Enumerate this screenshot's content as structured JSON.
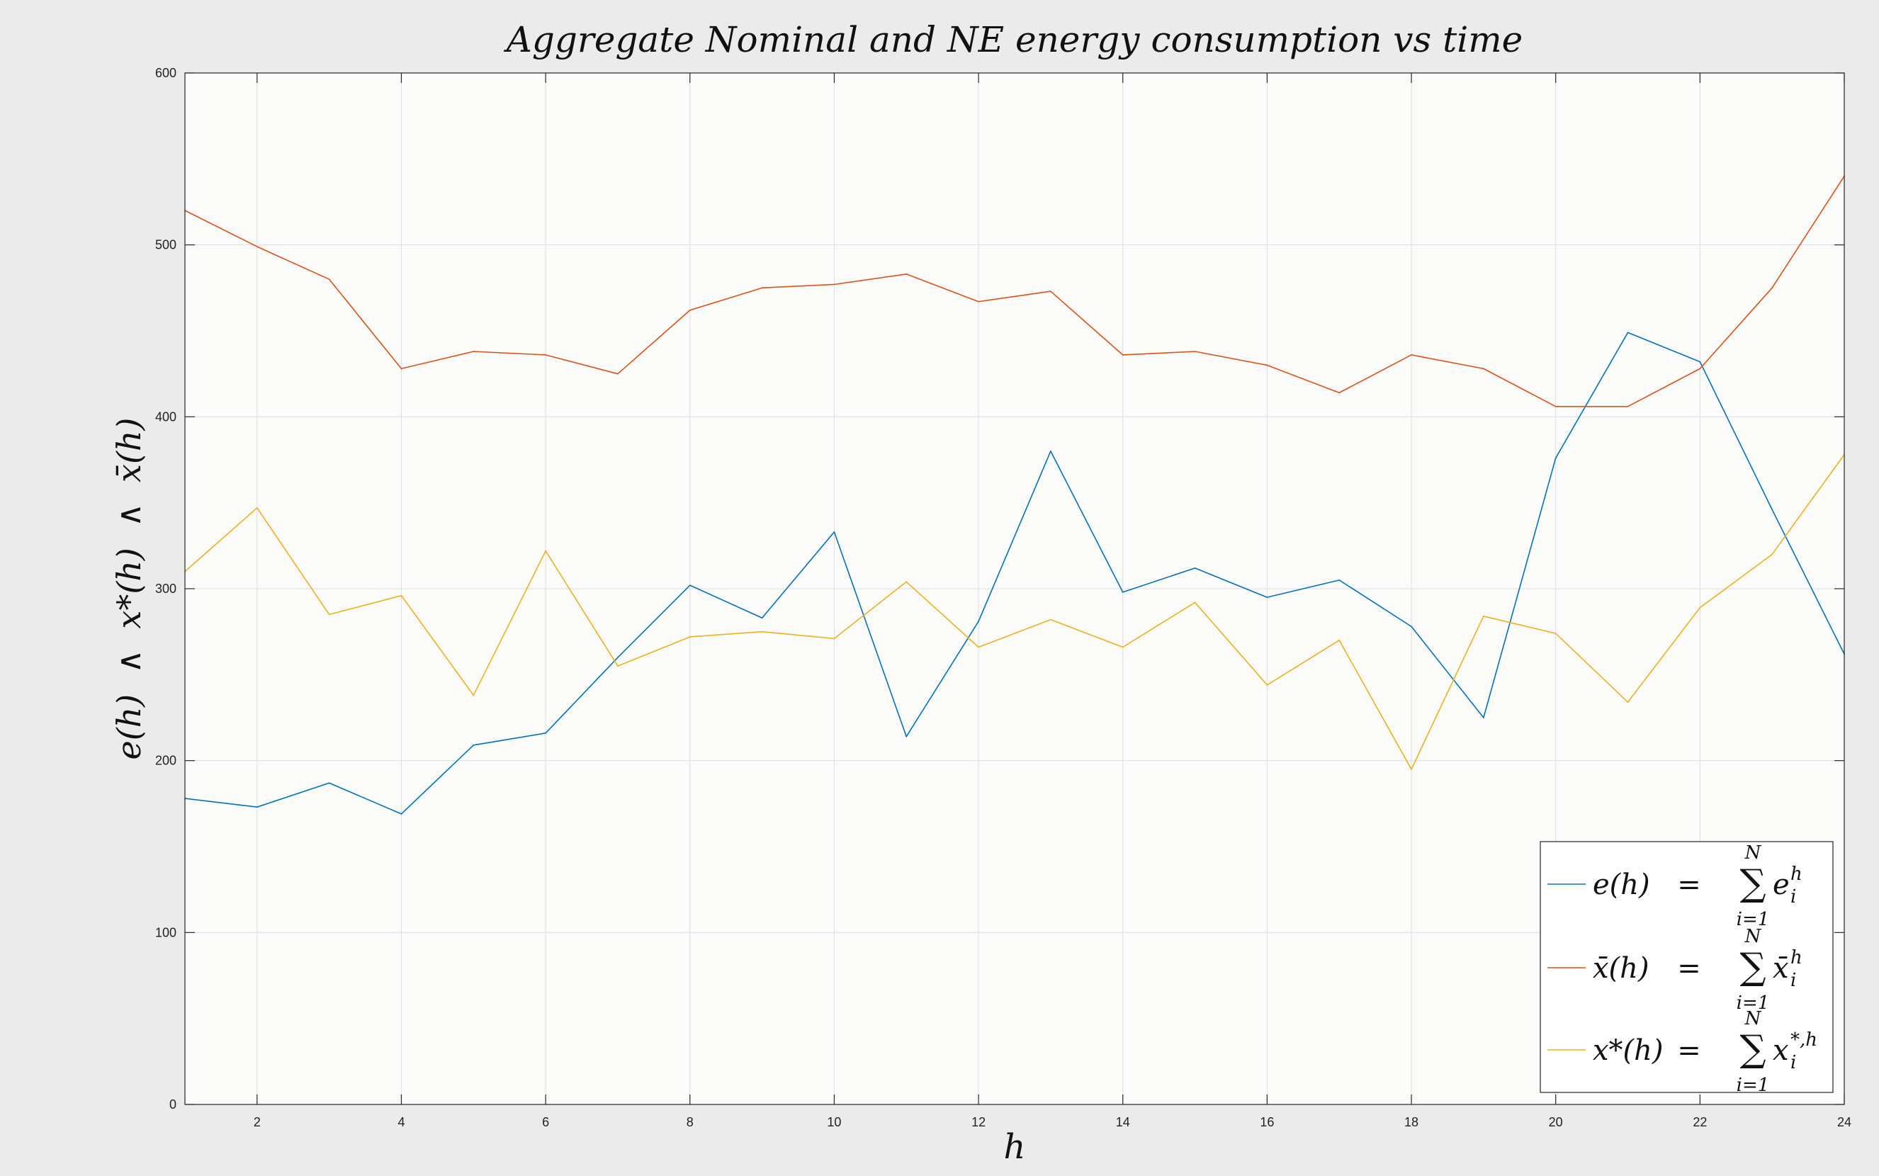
{
  "chart_data": {
    "type": "line",
    "title": "Aggregate Nominal and NE energy consumption vs time",
    "xlabel": "h",
    "ylabel": "e(h)  ∧  x*(h)  ∧  x̄(h)",
    "xlim": [
      1,
      24
    ],
    "ylim": [
      0,
      600
    ],
    "xticks": [
      2,
      4,
      6,
      8,
      10,
      12,
      14,
      16,
      18,
      20,
      22,
      24
    ],
    "yticks": [
      0,
      100,
      200,
      300,
      400,
      500,
      600
    ],
    "grid": true,
    "legend_position": "bottom-right",
    "x": [
      1,
      2,
      3,
      4,
      5,
      6,
      7,
      8,
      9,
      10,
      11,
      12,
      13,
      14,
      15,
      16,
      17,
      18,
      19,
      20,
      21,
      22,
      23,
      24
    ],
    "series": [
      {
        "name": "e(h) = Σ_{i=1}^{N} e_i^h",
        "color": "#0072bd",
        "values": [
          178,
          173,
          187,
          169,
          209,
          216,
          260,
          302,
          283,
          333,
          214,
          281,
          380,
          298,
          312,
          295,
          305,
          278,
          225,
          376,
          449,
          432,
          346,
          262
        ]
      },
      {
        "name": "x̄(h) = Σ_{i=1}^{N} x̄_i^h",
        "color": "#d95319",
        "values": [
          520,
          499,
          480,
          428,
          438,
          436,
          425,
          462,
          475,
          477,
          483,
          467,
          473,
          436,
          438,
          430,
          414,
          436,
          428,
          406,
          406,
          428,
          475,
          540
        ]
      },
      {
        "name": "x*(h) = Σ_{i=1}^{N} x_i^{*,h}",
        "color": "#edb120",
        "values": [
          310,
          347,
          285,
          296,
          238,
          322,
          255,
          272,
          275,
          271,
          304,
          266,
          282,
          266,
          292,
          244,
          270,
          195,
          284,
          274,
          234,
          289,
          320,
          378
        ]
      }
    ]
  },
  "legend": {
    "entries": [
      {
        "lhs": "e(h)",
        "eq": "=",
        "sum_top": "N",
        "sum_symbol": "∑",
        "sum_bottom": "i=1",
        "term_base": "e",
        "term_sup": "h",
        "term_sub": "i"
      },
      {
        "lhs": "x̄(h)",
        "eq": "=",
        "sum_top": "N",
        "sum_symbol": "∑",
        "sum_bottom": "i=1",
        "term_base": "x̄",
        "term_sup": "h",
        "term_sub": "i"
      },
      {
        "lhs": "x*(h)",
        "eq": "=",
        "sum_top": "N",
        "sum_symbol": "∑",
        "sum_bottom": "i=1",
        "term_base": "x",
        "term_sup": "*,h",
        "term_sub": "i"
      }
    ]
  }
}
